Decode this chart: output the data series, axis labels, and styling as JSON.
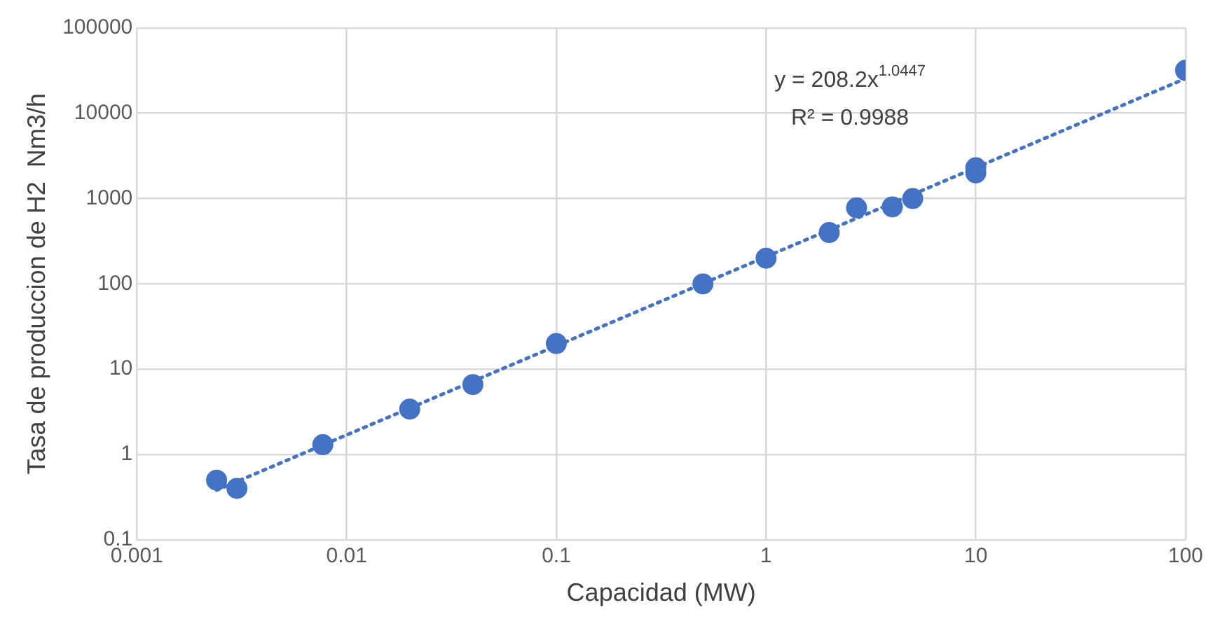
{
  "chart_data": {
    "type": "scatter",
    "xlabel": "Capacidad (MW)",
    "ylabel": "Tasa de produccion de H2  Nm3/h",
    "log": "xy",
    "grid": true,
    "legend": false,
    "marker": "circle",
    "xlim": [
      0.001,
      100
    ],
    "xticks": [
      0.001,
      0.01,
      0.1,
      1,
      10,
      100
    ],
    "ylim": [
      0.1,
      100000
    ],
    "yticks": [
      0.1,
      1,
      10,
      100,
      1000,
      10000,
      100000
    ],
    "annotations": [
      "y = 208.2x$^{1.0447}$",
      "R² = 0.9988"
    ],
    "series": [
      {
        "type": "scatter",
        "color": "#4472c4",
        "x": [
          0.0024,
          0.003,
          0.0077,
          0.02,
          0.04,
          0.1,
          0.5,
          1,
          2,
          2.7,
          4,
          5,
          10,
          10,
          100
        ],
        "values": [
          0.5,
          0.4,
          1.3,
          3.4,
          6.6,
          20,
          100,
          200,
          400,
          780,
          800,
          1000,
          2000,
          2300,
          32000
        ]
      },
      {
        "type": "line",
        "color": "#4472c4",
        "line_style": "dotted",
        "marker": "none",
        "x": [
          0.0024,
          100
        ],
        "values": [
          0.381,
          25590
        ]
      }
    ]
  }
}
